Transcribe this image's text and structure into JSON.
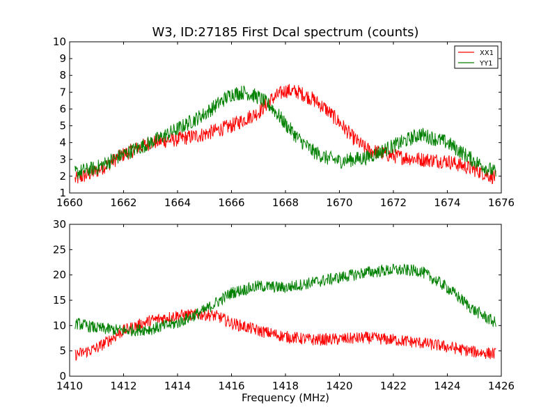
{
  "title": "W3, ID:27185 First Dcal spectrum (counts)",
  "chart_data": [
    {
      "type": "line",
      "xlim": [
        1660,
        1676
      ],
      "ylim": [
        1,
        10
      ],
      "xticks": [
        1660,
        1662,
        1664,
        1666,
        1668,
        1670,
        1672,
        1674,
        1676
      ],
      "yticks": [
        1,
        2,
        3,
        4,
        5,
        6,
        7,
        8,
        9,
        10
      ],
      "xlabel": "",
      "ylabel": "",
      "grid": false,
      "legend": "top-right",
      "noise_amplitude": 0.45,
      "series": [
        {
          "name": "XX1",
          "color": "#ff0000",
          "x": [
            1660.2,
            1661,
            1662,
            1663,
            1664,
            1665,
            1666,
            1667,
            1667.5,
            1668,
            1668.5,
            1669,
            1669.5,
            1670,
            1670.5,
            1671,
            1672,
            1673,
            1674,
            1675,
            1675.8
          ],
          "y": [
            1.8,
            2.3,
            3.3,
            4.0,
            4.2,
            4.5,
            5.0,
            5.8,
            6.6,
            7.1,
            7.0,
            6.6,
            6.0,
            5.2,
            4.3,
            3.6,
            3.2,
            3.0,
            2.9,
            2.4,
            1.9
          ]
        },
        {
          "name": "YY1",
          "color": "#008000",
          "x": [
            1660.2,
            1661,
            1662,
            1663,
            1664,
            1665,
            1665.5,
            1666,
            1666.5,
            1667,
            1667.5,
            1668,
            1668.5,
            1669,
            1669.5,
            1670,
            1671,
            1672,
            1673,
            1674,
            1675,
            1675.8
          ],
          "y": [
            2.2,
            2.5,
            3.3,
            4.0,
            4.8,
            5.7,
            6.3,
            6.9,
            7.0,
            6.7,
            6.1,
            5.1,
            4.2,
            3.5,
            3.1,
            2.9,
            3.1,
            3.8,
            4.5,
            4.0,
            2.9,
            2.2
          ]
        }
      ]
    },
    {
      "type": "line",
      "xlim": [
        1410,
        1426
      ],
      "ylim": [
        0,
        30
      ],
      "xticks": [
        1410,
        1412,
        1414,
        1416,
        1418,
        1420,
        1422,
        1424,
        1426
      ],
      "yticks": [
        0,
        5,
        10,
        15,
        20,
        25,
        30
      ],
      "xlabel": "Frequency (MHz)",
      "ylabel": "",
      "grid": false,
      "noise_amplitude": 1.2,
      "series": [
        {
          "name": "",
          "color": "#ff0000",
          "x": [
            1410.2,
            1411,
            1412,
            1413,
            1414,
            1415,
            1415.5,
            1416,
            1417,
            1418,
            1419,
            1420,
            1421,
            1422,
            1423,
            1424,
            1425,
            1425.8
          ],
          "y": [
            4.2,
            5.5,
            9.0,
            11.0,
            12.0,
            12.2,
            11.8,
            10.5,
            9.0,
            7.8,
            7.2,
            7.3,
            7.6,
            7.2,
            6.6,
            5.8,
            4.8,
            4.4
          ]
        },
        {
          "name": "",
          "color": "#008000",
          "x": [
            1410.2,
            1411,
            1412,
            1413,
            1414,
            1415,
            1416,
            1417,
            1418,
            1419,
            1420,
            1421,
            1422,
            1423,
            1424,
            1425,
            1425.8
          ],
          "y": [
            10.5,
            9.5,
            9.0,
            9.3,
            10.5,
            13.0,
            16.5,
            17.8,
            17.5,
            18.5,
            19.5,
            20.5,
            21.0,
            20.8,
            17.5,
            13.0,
            10.5
          ]
        }
      ]
    }
  ]
}
